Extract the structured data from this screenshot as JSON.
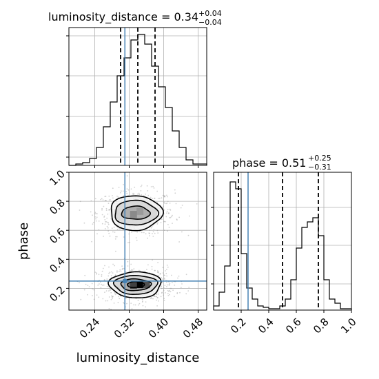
{
  "chart_data": [
    {
      "id": "ld_hist",
      "type": "histogram",
      "title_base": "luminosity_distance = 0.34",
      "title_sup": "+0.04",
      "title_sub": "−0.04",
      "xlim": [
        0.18,
        0.5
      ],
      "ylim": [
        0,
        1.0
      ],
      "x_ticks": [
        0.24,
        0.32,
        0.4,
        0.48
      ],
      "quantiles": [
        0.3,
        0.34,
        0.38
      ],
      "truth": 0.31,
      "bins": {
        "start": 0.18,
        "width": 0.016,
        "heights": [
          0.0,
          0.01,
          0.02,
          0.05,
          0.13,
          0.28,
          0.46,
          0.65,
          0.78,
          0.91,
          0.95,
          0.88,
          0.72,
          0.57,
          0.42,
          0.25,
          0.13,
          0.04,
          0.01,
          0.01
        ]
      },
      "grid": true
    },
    {
      "id": "ld_phase_2d",
      "type": "contour2d",
      "xlabel": "luminosity_distance",
      "ylabel": "phase",
      "xlim": [
        0.18,
        0.5
      ],
      "ylim": [
        0.05,
        1.0
      ],
      "x_ticks": [
        "0.24",
        "0.32",
        "0.40",
        "0.48"
      ],
      "y_ticks": [
        "0.2",
        "0.4",
        "0.6",
        "0.8",
        "1.0"
      ],
      "y_tick_values": [
        0.2,
        0.4,
        0.6,
        0.8,
        1.0
      ],
      "x_tick_values": [
        0.24,
        0.32,
        0.4,
        0.48
      ],
      "truth": {
        "x": 0.31,
        "y": 0.25
      },
      "modes": [
        {
          "cx": 0.335,
          "cy": 0.72,
          "rx": [
            0.033,
            0.05,
            0.06
          ],
          "ry": [
            0.045,
            0.085,
            0.12
          ]
        },
        {
          "cx": 0.335,
          "cy": 0.225,
          "rx": [
            0.02,
            0.035,
            0.05,
            0.06
          ],
          "ry": [
            0.02,
            0.04,
            0.065,
            0.09
          ]
        }
      ],
      "grid": true
    },
    {
      "id": "phase_hist",
      "type": "histogram",
      "title_base": "phase = 0.51",
      "title_sup": "+0.25",
      "title_sub": "−0.31",
      "xlim": [
        0.0,
        1.0
      ],
      "ylim": [
        0,
        1.0
      ],
      "x_ticks": [
        "0.2",
        "0.4",
        "0.6",
        "0.8",
        "1.0"
      ],
      "x_tick_values": [
        0.2,
        0.4,
        0.6,
        0.8,
        1.0
      ],
      "quantiles": [
        0.18,
        0.5,
        0.76
      ],
      "truth": 0.25,
      "bins": {
        "start": 0.0,
        "width": 0.04,
        "heights": [
          0.03,
          0.13,
          0.32,
          0.93,
          0.88,
          0.41,
          0.16,
          0.08,
          0.03,
          0.02,
          0.01,
          0.01,
          0.03,
          0.08,
          0.22,
          0.45,
          0.6,
          0.64,
          0.67,
          0.54,
          0.22,
          0.08,
          0.05,
          0.01,
          0.01
        ]
      },
      "grid": true
    }
  ],
  "colors": {
    "truth": "#4682b4",
    "contour": "#000000",
    "grid": "#b0b0b0"
  }
}
